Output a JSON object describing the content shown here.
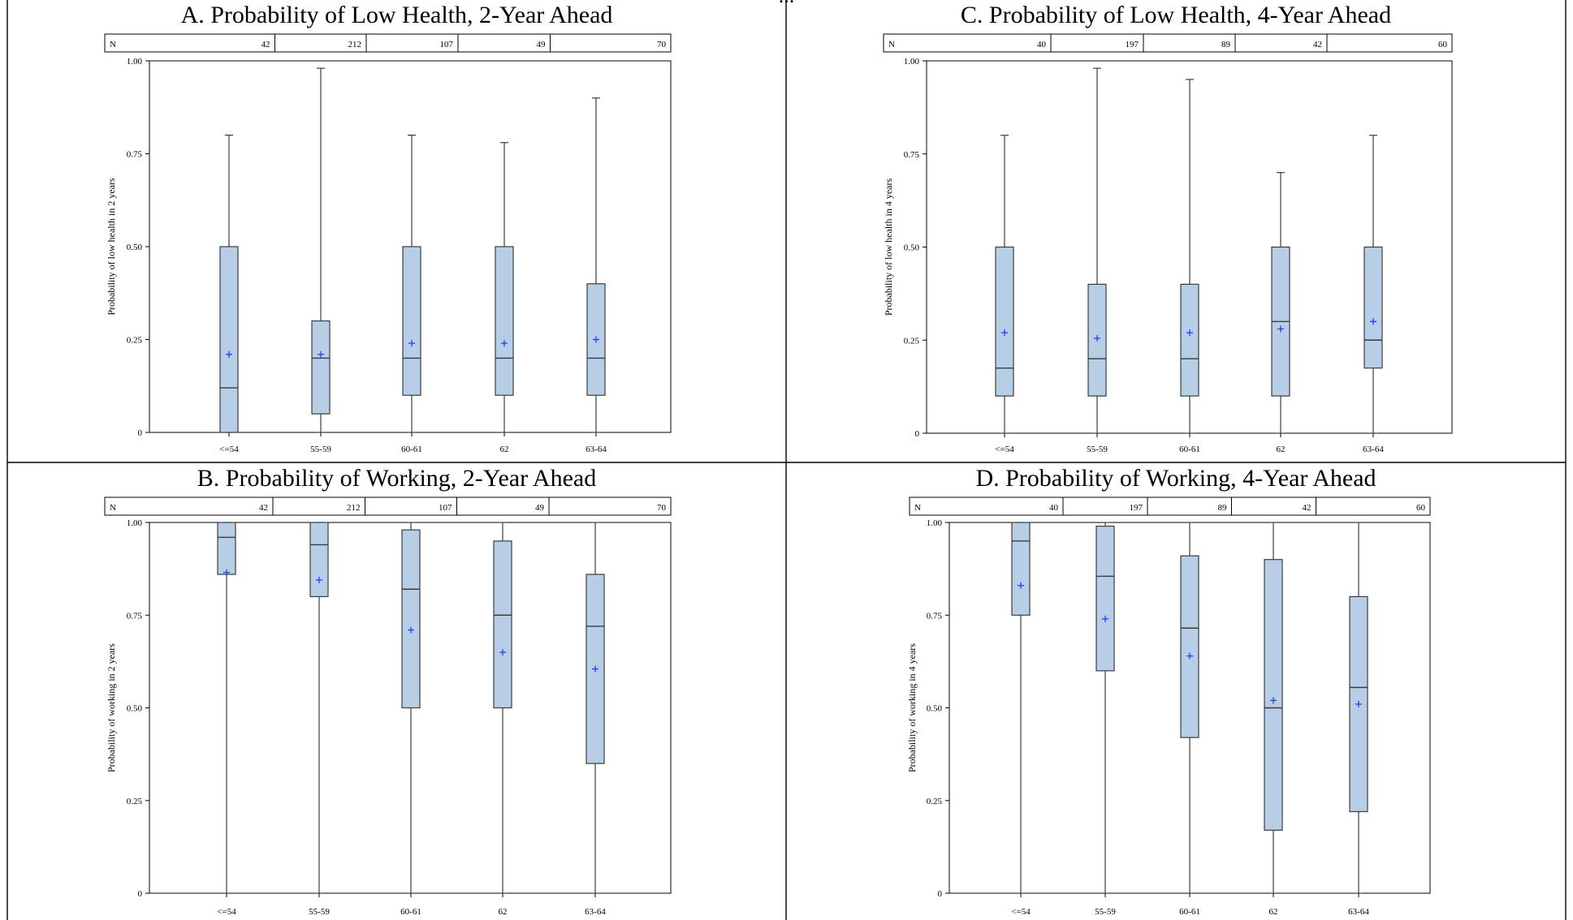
{
  "header_fragment": "...",
  "chart_data": [
    {
      "id": "A",
      "type": "box",
      "title": "A. Probability of Low Health, 2-Year Ahead",
      "ylabel": "Probability of low health in 2 years",
      "ylim": [
        0,
        1
      ],
      "yticks": [
        "0",
        "0.25",
        "0.50",
        "0.75",
        "1.00"
      ],
      "categories": [
        "<=54",
        "55-59",
        "60-61",
        "62",
        "63-64"
      ],
      "n_label": "N",
      "n": [
        "42",
        "212",
        "107",
        "49",
        "70"
      ],
      "boxes": [
        {
          "min": 0,
          "q1": 0,
          "median": 0.12,
          "q3": 0.5,
          "max": 0.8,
          "mean": 0.21
        },
        {
          "min": 0,
          "q1": 0.05,
          "median": 0.2,
          "q3": 0.3,
          "max": 0.98,
          "mean": 0.21
        },
        {
          "min": 0,
          "q1": 0.1,
          "median": 0.2,
          "q3": 0.5,
          "max": 0.8,
          "mean": 0.24
        },
        {
          "min": 0,
          "q1": 0.1,
          "median": 0.2,
          "q3": 0.5,
          "max": 0.78,
          "mean": 0.24
        },
        {
          "min": 0,
          "q1": 0.1,
          "median": 0.2,
          "q3": 0.4,
          "max": 0.9,
          "mean": 0.25
        }
      ]
    },
    {
      "id": "C",
      "type": "box",
      "title": "C. Probability of Low Health, 4-Year Ahead",
      "ylabel": "Probability of low health in 4 years",
      "ylim": [
        0,
        1
      ],
      "yticks": [
        "0",
        "0.25",
        "0.50",
        "0.75",
        "1.00"
      ],
      "categories": [
        "<=54",
        "55-59",
        "60-61",
        "62",
        "63-64"
      ],
      "n_label": "N",
      "n": [
        "40",
        "197",
        "89",
        "42",
        "60"
      ],
      "boxes": [
        {
          "min": 0,
          "q1": 0.1,
          "median": 0.175,
          "q3": 0.5,
          "max": 0.8,
          "mean": 0.27
        },
        {
          "min": 0,
          "q1": 0.1,
          "median": 0.2,
          "q3": 0.4,
          "max": 0.98,
          "mean": 0.255
        },
        {
          "min": 0,
          "q1": 0.1,
          "median": 0.2,
          "q3": 0.4,
          "max": 0.95,
          "mean": 0.27
        },
        {
          "min": 0,
          "q1": 0.1,
          "median": 0.3,
          "q3": 0.5,
          "max": 0.7,
          "mean": 0.28
        },
        {
          "min": 0,
          "q1": 0.175,
          "median": 0.25,
          "q3": 0.5,
          "max": 0.8,
          "mean": 0.3
        }
      ]
    },
    {
      "id": "B",
      "type": "box",
      "title": "B. Probability of Working, 2-Year Ahead",
      "ylabel": "Probability of working in 2 years",
      "ylim": [
        0,
        1
      ],
      "yticks": [
        "0",
        "0.25",
        "0.50",
        "0.75",
        "1.00"
      ],
      "categories": [
        "<=54",
        "55-59",
        "60-61",
        "62",
        "63-64"
      ],
      "n_label": "N",
      "n": [
        "42",
        "212",
        "107",
        "49",
        "70"
      ],
      "boxes": [
        {
          "min": 0,
          "q1": 0.86,
          "median": 0.96,
          "q3": 1.0,
          "max": 1.0,
          "mean": 0.865
        },
        {
          "min": 0,
          "q1": 0.8,
          "median": 0.94,
          "q3": 1.0,
          "max": 1.0,
          "mean": 0.845
        },
        {
          "min": 0,
          "q1": 0.5,
          "median": 0.82,
          "q3": 0.98,
          "max": 1.0,
          "mean": 0.71
        },
        {
          "min": 0,
          "q1": 0.5,
          "median": 0.75,
          "q3": 0.95,
          "max": 1.0,
          "mean": 0.65
        },
        {
          "min": 0,
          "q1": 0.35,
          "median": 0.72,
          "q3": 0.86,
          "max": 1.0,
          "mean": 0.605
        }
      ]
    },
    {
      "id": "D",
      "type": "box",
      "title": "D. Probability of Working, 4-Year Ahead",
      "ylabel": "Probability of working in 4 years",
      "ylim": [
        0,
        1
      ],
      "yticks": [
        "0",
        "0.25",
        "0.50",
        "0.75",
        "1.00"
      ],
      "categories": [
        "<=54",
        "55-59",
        "60-61",
        "62",
        "63-64"
      ],
      "n_label": "N",
      "n": [
        "40",
        "197",
        "89",
        "42",
        "60"
      ],
      "boxes": [
        {
          "min": 0,
          "q1": 0.75,
          "median": 0.95,
          "q3": 1.0,
          "max": 1.0,
          "mean": 0.83
        },
        {
          "min": 0,
          "q1": 0.6,
          "median": 0.855,
          "q3": 0.99,
          "max": 1.0,
          "mean": 0.74
        },
        {
          "min": 0,
          "q1": 0.42,
          "median": 0.715,
          "q3": 0.91,
          "max": 1.0,
          "mean": 0.64
        },
        {
          "min": 0,
          "q1": 0.17,
          "median": 0.5,
          "q3": 0.9,
          "max": 1.0,
          "mean": 0.52
        },
        {
          "min": 0,
          "q1": 0.22,
          "median": 0.555,
          "q3": 0.8,
          "max": 1.0,
          "mean": 0.51
        }
      ]
    }
  ],
  "colors": {
    "box_fill": "#b8cde6",
    "box_stroke": "#3c3c3c",
    "whisker": "#3c3c3c",
    "mean_marker": "#1f3fff",
    "frame": "#000000"
  }
}
